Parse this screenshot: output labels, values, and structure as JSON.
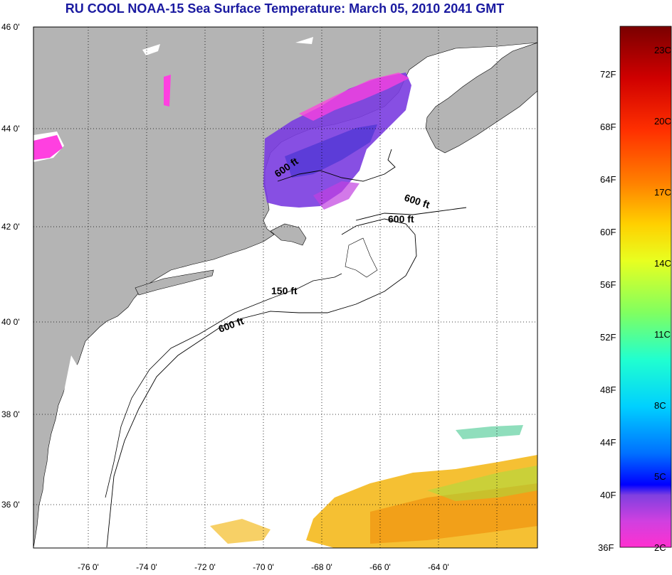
{
  "title": "RU COOL  NOAA-15  Sea Surface Temperature:  March 05, 2010 2041 GMT",
  "map": {
    "lat_labels": [
      "46 0'",
      "44 0'",
      "42 0'",
      "40 0'",
      "38 0'",
      "36 0'"
    ],
    "lon_labels": [
      "-76 0'",
      "-74 0'",
      "-72 0'",
      "-70 0'",
      "-68 0'",
      "-66 0'",
      "-64 0'"
    ],
    "contour_labels": [
      "600 ft",
      "600 ft",
      "600 ft",
      "150 ft",
      "600 ft"
    ],
    "colors": {
      "land": "#b4b4b4",
      "water": "#ffffff",
      "grid": "#000000"
    }
  },
  "colorbar": {
    "f_labels": [
      "72F",
      "68F",
      "64F",
      "60F",
      "56F",
      "52F",
      "48F",
      "44F",
      "40F",
      "36F"
    ],
    "c_labels": [
      "23C",
      "20C",
      "17C",
      "14C",
      "11C",
      "8C",
      "5C",
      "2C"
    ],
    "gradient": [
      "#7a0000",
      "#d00000",
      "#ff3000",
      "#ff8000",
      "#ffd000",
      "#e8ff20",
      "#80ff60",
      "#20ffd0",
      "#00d0ff",
      "#0070ff",
      "#0000ff",
      "#8040e0",
      "#d040e0",
      "#ff30d0"
    ]
  }
}
